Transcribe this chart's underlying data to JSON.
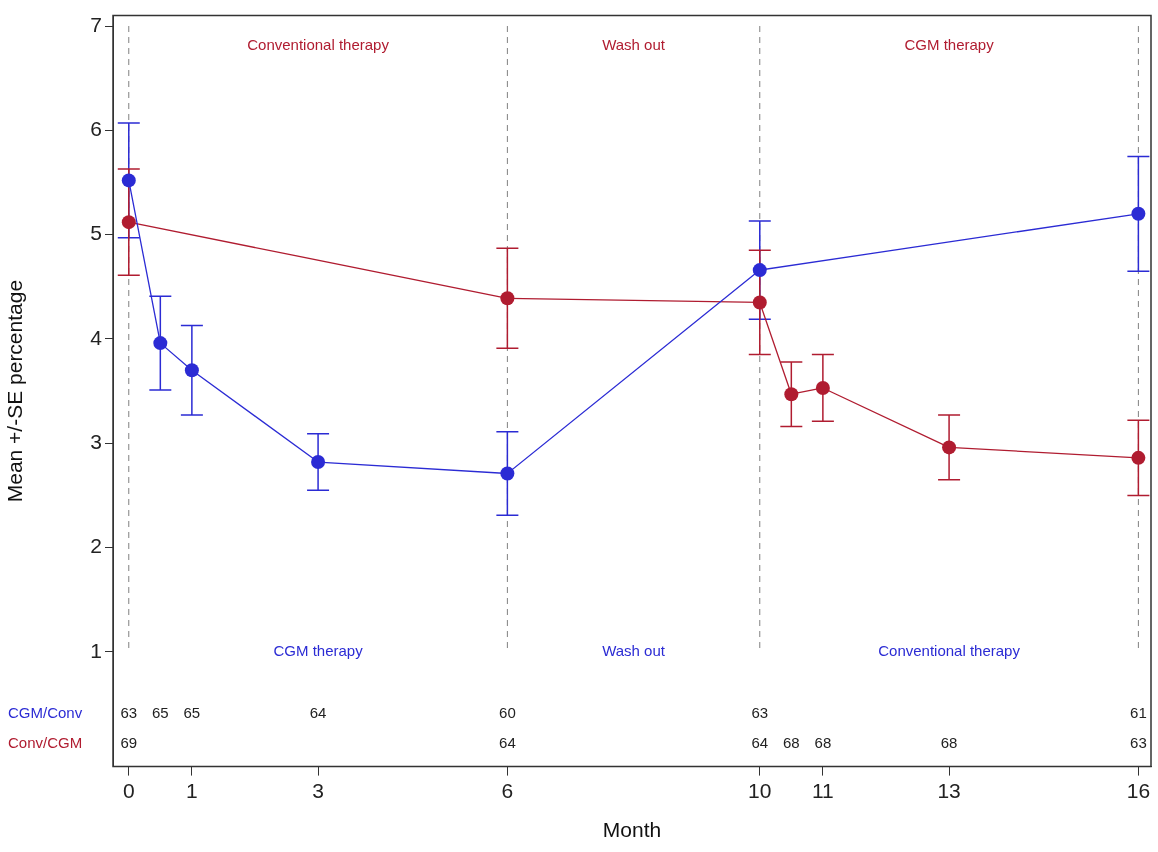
{
  "chart_data": {
    "type": "line",
    "xlabel": "Month",
    "ylabel": "Mean +/-SE percentage",
    "xlim": [
      -0.25,
      16.2
    ],
    "xticks": [
      0,
      1,
      3,
      6,
      10,
      11,
      13,
      16
    ],
    "ylim": [
      -0.1,
      7.1
    ],
    "yticks": [
      1,
      2,
      3,
      4,
      5,
      6,
      7
    ],
    "grid": false,
    "legend": false,
    "marker": "circle",
    "line_style": "solid",
    "series": [
      {
        "name": "CGM/Conv",
        "color": "#2b2bd4",
        "x": [
          0,
          0.5,
          1,
          3,
          6,
          10,
          16
        ],
        "values": [
          5.52,
          3.96,
          3.7,
          2.82,
          2.71,
          4.66,
          5.2
        ],
        "errors": [
          [
            4.97,
            6.07
          ],
          [
            3.51,
            4.41
          ],
          [
            3.27,
            4.13
          ],
          [
            2.55,
            3.09
          ],
          [
            2.31,
            3.11
          ],
          [
            4.19,
            5.13
          ],
          [
            4.65,
            5.75
          ]
        ]
      },
      {
        "name": "Conv/CGM",
        "color": "#b01c30",
        "x": [
          0,
          6,
          10,
          10.5,
          11,
          13,
          16
        ],
        "values": [
          5.12,
          4.39,
          4.35,
          3.47,
          3.53,
          2.96,
          2.86
        ],
        "errors": [
          [
            4.61,
            5.63
          ],
          [
            3.91,
            4.87
          ],
          [
            3.85,
            4.85
          ],
          [
            3.16,
            3.78
          ],
          [
            3.21,
            3.85
          ],
          [
            2.65,
            3.27
          ],
          [
            2.5,
            3.22
          ]
        ]
      }
    ],
    "ref_lines": [
      {
        "axis": "x",
        "value": 0,
        "color": "#808080",
        "line_style": "dashed"
      },
      {
        "axis": "x",
        "value": 6,
        "color": "#808080",
        "line_style": "dashed"
      },
      {
        "axis": "x",
        "value": 10,
        "color": "#808080",
        "line_style": "dashed"
      },
      {
        "axis": "x",
        "value": 16,
        "color": "#808080",
        "line_style": "dashed"
      }
    ],
    "annotations": [
      "Conventional therapy",
      "Wash out",
      "CGM therapy",
      "CGM therapy",
      "Wash out",
      "Conventional therapy",
      "63",
      "65",
      "65",
      "64",
      "60",
      "63",
      "61",
      "69",
      "64",
      "64",
      "68",
      "68",
      "68",
      "63"
    ]
  }
}
